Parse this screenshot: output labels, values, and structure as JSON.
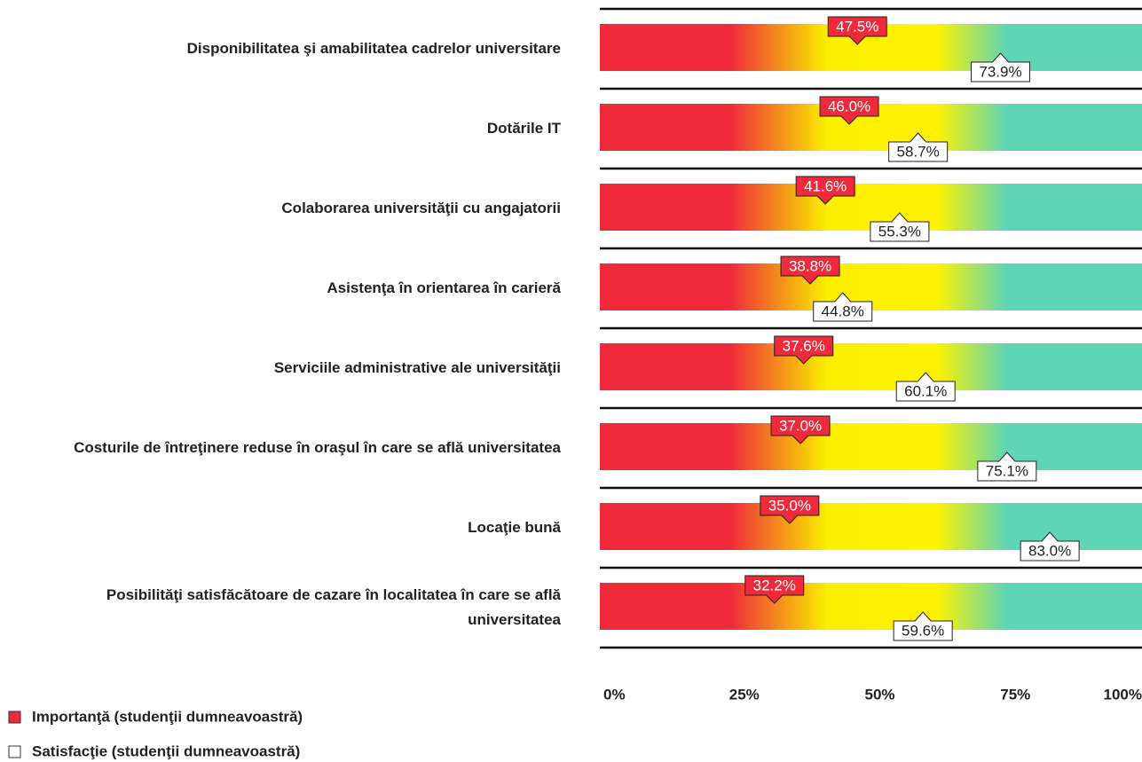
{
  "chart_data": {
    "type": "bar",
    "categories": [
      "Disponibilitatea şi amabilitatea cadrelor universitare",
      "Dotările IT",
      "Colaborarea universităţii cu angajatorii",
      "Asistenţa în orientarea în carieră",
      "Serviciile administrative ale universităţii",
      "Costurile de întreţinere reduse în oraşul în care se află universitatea",
      "Locaţie bună",
      "Posibilităţi satisfăcătoare de cazare în localitatea în care se află universitatea"
    ],
    "series": [
      {
        "name": "Importanţă (studenţii dumneavoastră)",
        "color": "#ee2a3b",
        "values": [
          47.5,
          46.0,
          41.6,
          38.8,
          37.6,
          37.0,
          35.0,
          32.2
        ],
        "value_labels": [
          "47.5%",
          "46.0%",
          "41.6%",
          "38.8%",
          "37.6%",
          "37.0%",
          "35.0%",
          "32.2%"
        ]
      },
      {
        "name": "Satisfacţie (studenţii dumneavoastră)",
        "color": "#ffffff",
        "values": [
          73.9,
          58.7,
          55.3,
          44.8,
          60.1,
          75.1,
          83.0,
          59.6
        ],
        "value_labels": [
          "73.9%",
          "58.7%",
          "55.3%",
          "44.8%",
          "60.1%",
          "75.1%",
          "83.0%",
          "59.6%"
        ]
      }
    ],
    "xlim": [
      0,
      100
    ],
    "xticks": [
      {
        "value": 0,
        "label": "0%"
      },
      {
        "value": 25,
        "label": "25%"
      },
      {
        "value": 50,
        "label": "50%"
      },
      {
        "value": 75,
        "label": "75%"
      },
      {
        "value": 100,
        "label": "100%"
      }
    ],
    "legend": "bottom-left"
  }
}
